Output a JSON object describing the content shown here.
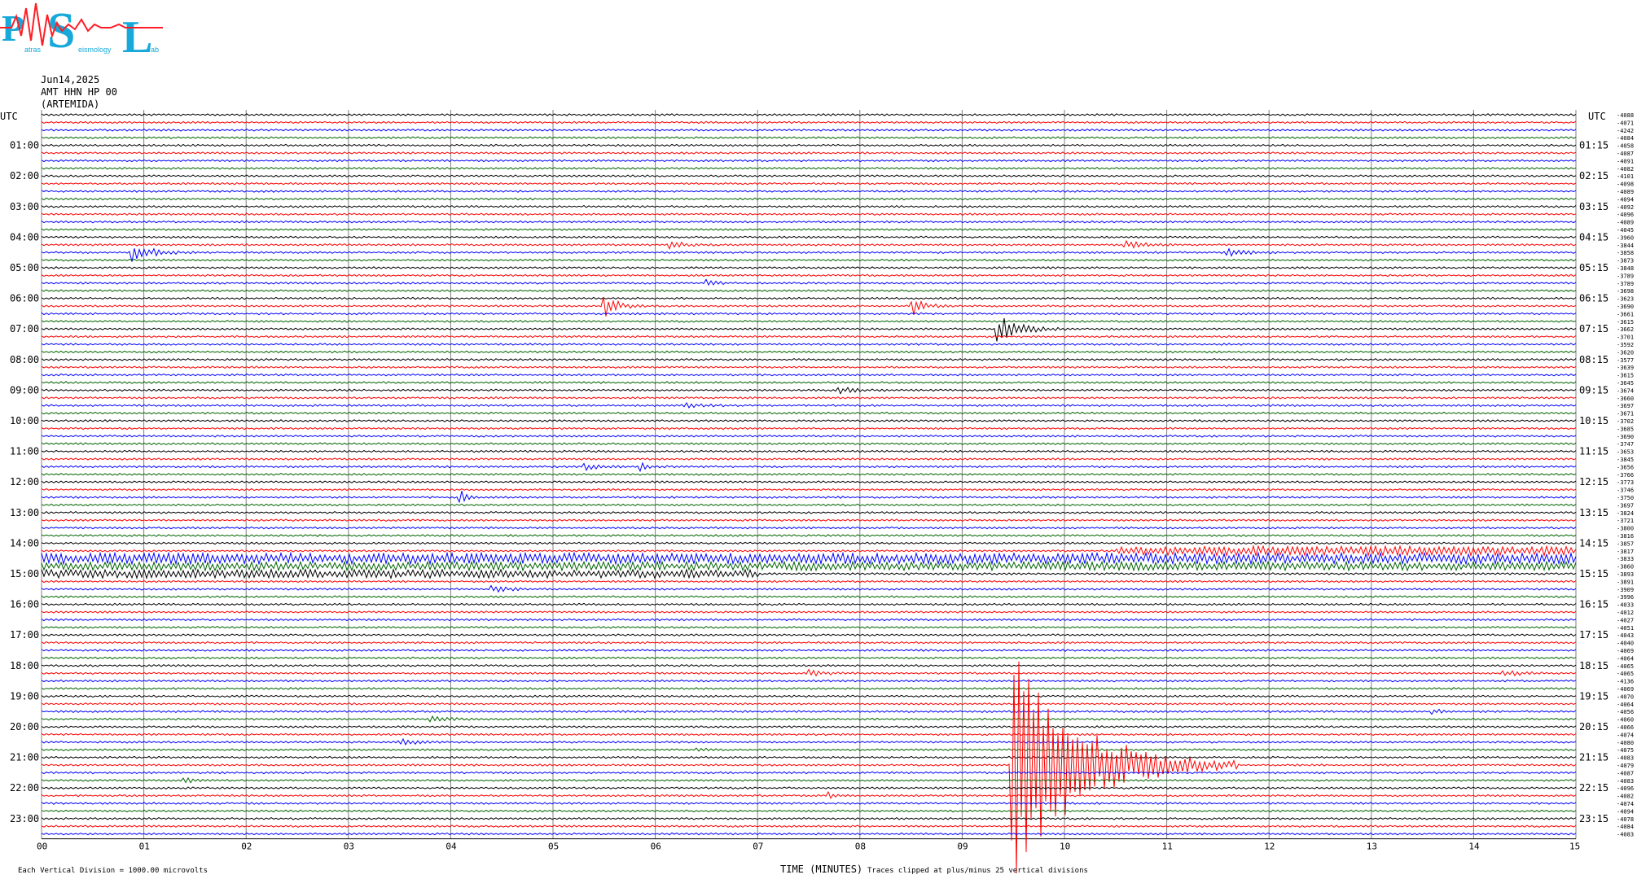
{
  "logo": {
    "letters": [
      "P",
      "S",
      "L"
    ],
    "subtext": [
      "atras",
      "eismology",
      "ab"
    ],
    "colors": {
      "letters": "#16a9d9",
      "trace": "#ff1d25"
    }
  },
  "header": {
    "date": "Jun14,2025",
    "station": "AMT HHN HP 00",
    "site": "(ARTEMIDA)"
  },
  "axis_labels": {
    "utc_left": "UTC",
    "utc_right": "UTC",
    "xlabel": "TIME (MINUTES)",
    "footer_left": "Each Vertical Division = 1000.00 microvolts",
    "footer_mid": "Traces clipped at plus/minus 25 vertical divisions"
  },
  "colors": {
    "cycle": [
      "#000000",
      "#ff0000",
      "#0000ff",
      "#006400"
    ],
    "grid": "#808080"
  },
  "chart_data": {
    "type": "line",
    "title": "",
    "xlabel": "TIME (MINUTES)",
    "ylabel": "",
    "xlim": [
      0,
      15
    ],
    "x_ticks": [
      "00",
      "01",
      "02",
      "03",
      "04",
      "05",
      "06",
      "07",
      "08",
      "09",
      "10",
      "11",
      "12",
      "13",
      "14",
      "15"
    ],
    "lines_per_hour": 4,
    "left_labels": [
      "01:00",
      "02:00",
      "03:00",
      "04:00",
      "05:00",
      "06:00",
      "07:00",
      "08:00",
      "09:00",
      "10:00",
      "11:00",
      "12:00",
      "13:00",
      "14:00",
      "15:00",
      "16:00",
      "17:00",
      "18:00",
      "19:00",
      "20:00",
      "21:00",
      "22:00",
      "23:00"
    ],
    "right_labels": [
      "01:15",
      "02:15",
      "03:15",
      "04:15",
      "05:15",
      "06:15",
      "07:15",
      "08:15",
      "09:15",
      "10:15",
      "11:15",
      "12:15",
      "13:15",
      "14:15",
      "15:15",
      "16:15",
      "17:15",
      "18:15",
      "19:15",
      "20:15",
      "21:15",
      "22:15",
      "23:15"
    ],
    "offsets": [
      "-4088",
      "-4071",
      "-4242",
      "-4084",
      "-4058",
      "-4087",
      "-4091",
      "-4082",
      "-4101",
      "-4098",
      "-4089",
      "-4094",
      "-4092",
      "-4096",
      "-4089",
      "-4045",
      "-3960",
      "-3844",
      "-3858",
      "-3873",
      "-3848",
      "-3789",
      "-3789",
      "-3698",
      "-3623",
      "-3690",
      "-3661",
      "-3615",
      "-3662",
      "-3701",
      "-3592",
      "-3620",
      "-3577",
      "-3639",
      "-3615",
      "-3645",
      "-3674",
      "-3660",
      "-3697",
      "-3671",
      "-3702",
      "-3685",
      "-3690",
      "-3747",
      "-3653",
      "-3845",
      "-3656",
      "-3766",
      "-3773",
      "-3746",
      "-3750",
      "-3697",
      "-3824",
      "-3721",
      "-3800",
      "-3816",
      "-3857",
      "-3817",
      "-3833",
      "-3860",
      "-3893",
      "-3891",
      "-3909",
      "-3996",
      "-4033",
      "-4012",
      "-4027",
      "-4051",
      "-4043",
      "-4040",
      "-4069",
      "-4064",
      "-4065",
      "-4065",
      "-4136",
      "-4069",
      "-4070",
      "-4064",
      "-4056",
      "-4060",
      "-4066",
      "-4074",
      "-4080",
      "-4075",
      "-4083",
      "-4079",
      "-4087",
      "-4083",
      "-4096",
      "-4082",
      "-4074",
      "-4094",
      "-4078",
      "-4084",
      "-4083"
    ],
    "events": [
      {
        "trace": 18,
        "minute": 0.9,
        "amplitude": 2.0,
        "duration_min": 0.6
      },
      {
        "trace": 17,
        "minute": 6.15,
        "amplitude": 0.8,
        "duration_min": 0.5
      },
      {
        "trace": 17,
        "minute": 10.6,
        "amplitude": 0.8,
        "duration_min": 0.6
      },
      {
        "trace": 18,
        "minute": 11.6,
        "amplitude": 0.7,
        "duration_min": 0.6
      },
      {
        "trace": 22,
        "minute": 6.5,
        "amplitude": 0.8,
        "duration_min": 0.3
      },
      {
        "trace": 25,
        "minute": 5.5,
        "amplitude": 3.0,
        "duration_min": 0.4
      },
      {
        "trace": 25,
        "minute": 8.5,
        "amplitude": 2.2,
        "duration_min": 0.4
      },
      {
        "trace": 28,
        "minute": 9.35,
        "amplitude": 3.0,
        "duration_min": 0.7
      },
      {
        "trace": 36,
        "minute": 7.8,
        "amplitude": 0.6,
        "duration_min": 0.6
      },
      {
        "trace": 38,
        "minute": 6.3,
        "amplitude": 0.4,
        "duration_min": 0.6
      },
      {
        "trace": 46,
        "minute": 5.3,
        "amplitude": 0.8,
        "duration_min": 0.4
      },
      {
        "trace": 46,
        "minute": 5.85,
        "amplitude": 0.8,
        "duration_min": 0.3
      },
      {
        "trace": 50,
        "minute": 4.1,
        "amplitude": 1.5,
        "duration_min": 0.2
      },
      {
        "trace": 62,
        "minute": 4.4,
        "amplitude": 0.6,
        "duration_min": 0.6
      },
      {
        "trace": 73,
        "minute": 7.5,
        "amplitude": 0.6,
        "duration_min": 0.6
      },
      {
        "trace": 73,
        "minute": 14.3,
        "amplitude": 0.7,
        "duration_min": 0.6
      },
      {
        "trace": 78,
        "minute": 13.6,
        "amplitude": 0.8,
        "duration_min": 0.2
      },
      {
        "trace": 79,
        "minute": 3.8,
        "amplitude": 0.5,
        "duration_min": 0.6
      },
      {
        "trace": 82,
        "minute": 3.5,
        "amplitude": 0.6,
        "duration_min": 0.6
      },
      {
        "trace": 83,
        "minute": 6.4,
        "amplitude": 0.5,
        "duration_min": 0.3
      },
      {
        "trace": 85,
        "minute": 9.5,
        "amplitude": 25,
        "duration_min": 2.2
      },
      {
        "trace": 87,
        "minute": 1.4,
        "amplitude": 0.7,
        "duration_min": 0.3
      },
      {
        "trace": 89,
        "minute": 7.7,
        "amplitude": 0.7,
        "duration_min": 0.2
      }
    ],
    "noisy_traces": [
      {
        "trace": 57,
        "minute_start": 10.5,
        "minute_end": 15,
        "level": 0.5
      },
      {
        "trace": 58,
        "minute_start": 0,
        "minute_end": 15,
        "level": 0.6
      },
      {
        "trace": 59,
        "minute_start": 0,
        "minute_end": 15,
        "level": 0.45
      },
      {
        "trace": 60,
        "minute_start": 0,
        "minute_end": 7,
        "level": 0.45
      }
    ],
    "clip_divisions": 25,
    "division_microvolts": 1000.0
  }
}
